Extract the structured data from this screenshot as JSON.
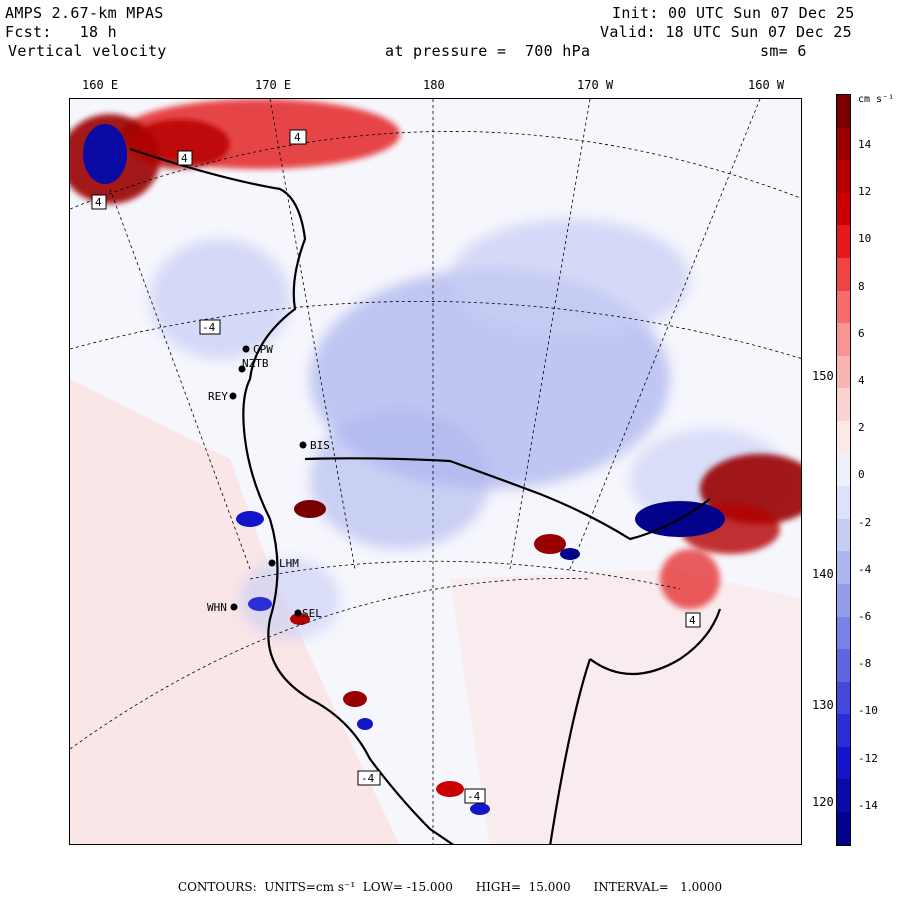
{
  "header": {
    "model": "AMPS 2.67-km MPAS",
    "fcst": "Fcst:   18 h",
    "field": "Vertical velocity",
    "init": "Init: 00 UTC Sun 07 Dec 25",
    "valid": "Valid: 18 UTC Sun 07 Dec 25",
    "level": "at pressure =  700 hPa",
    "smooth": "sm= 6"
  },
  "longitude_labels": [
    "160 E",
    "170 E",
    "180",
    "170 W",
    "160 W"
  ],
  "latitude_labels": [
    "150 W",
    "140 W",
    "130 W",
    "120 W"
  ],
  "stations": [
    "CPW",
    "NZTB",
    "REY",
    "BIS",
    "LHM",
    "WHN",
    "SEL"
  ],
  "extrema_labels": [
    "4",
    "4",
    "4",
    "-4",
    "-4",
    "4",
    "-4"
  ],
  "colorbar": {
    "units": "cm s⁻¹",
    "tick_labels": [
      "14",
      "12",
      "10",
      "8",
      "6",
      "4",
      "2",
      "0",
      "-2",
      "-4",
      "-6",
      "-8",
      "-10",
      "-12",
      "-14"
    ],
    "colors": [
      "#7a0000",
      "#9a0000",
      "#b40000",
      "#cc0000",
      "#e21a1a",
      "#ef4444",
      "#f56d6d",
      "#f79494",
      "#f9b4b4",
      "#fbd2d2",
      "#fde8e8",
      "#eef0fc",
      "#dde2f8",
      "#c6cdf3",
      "#aeb6ee",
      "#949dea",
      "#7a82e6",
      "#5f66e0",
      "#4449da",
      "#2a2ed6",
      "#1414c8",
      "#0a0aa4",
      "#02028a"
    ]
  },
  "footer": "CONTOURS:  UNITS=cm s⁻¹  LOW= -15.000      HIGH=  15.000      INTERVAL=   1.0000"
}
